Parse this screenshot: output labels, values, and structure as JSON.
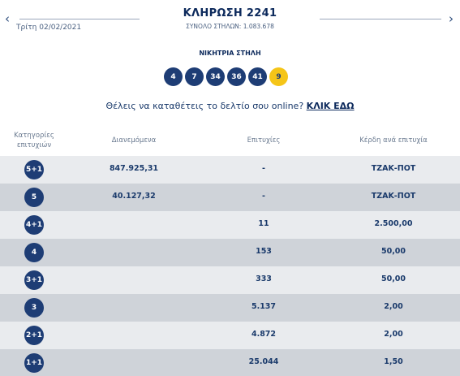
{
  "header": {
    "prev_arrow": "‹",
    "next_arrow": "›",
    "date": "Τρίτη 02/02/2021",
    "draw_title": "ΚΛΗΡΩΣΗ 2241",
    "total_columns": "ΣΥΝΟΛΟ ΣΤΗΛΩΝ: 1.083.678"
  },
  "winning": {
    "title": "ΝΙΚΗΤΡΙΑ ΣΤΗΛΗ",
    "numbers": [
      "4",
      "7",
      "34",
      "36",
      "41"
    ],
    "joker": "9",
    "colors": {
      "ball": "#1e3d75",
      "joker": "#f5c518"
    }
  },
  "online": {
    "text": "Θέλεις να καταθέτεις το δελτίο σου online? ",
    "link": "ΚΛΙΚ ΕΔΩ"
  },
  "table": {
    "headers": [
      "Κατηγορίες επιτυχιών",
      "Διανεμόμενα",
      "Επιτυχίες",
      "Κέρδη ανά επιτυχία"
    ],
    "rows": [
      {
        "category": "5+1",
        "distributed": "847.925,31",
        "winners": "-",
        "prize": "ΤΖΑΚ-ΠΟΤ"
      },
      {
        "category": "5",
        "distributed": "40.127,32",
        "winners": "-",
        "prize": "ΤΖΑΚ-ΠΟΤ"
      },
      {
        "category": "4+1",
        "distributed": "",
        "winners": "11",
        "prize": "2.500,00"
      },
      {
        "category": "4",
        "distributed": "",
        "winners": "153",
        "prize": "50,00"
      },
      {
        "category": "3+1",
        "distributed": "",
        "winners": "333",
        "prize": "50,00"
      },
      {
        "category": "3",
        "distributed": "",
        "winners": "5.137",
        "prize": "2,00"
      },
      {
        "category": "2+1",
        "distributed": "",
        "winners": "4.872",
        "prize": "2,00"
      },
      {
        "category": "1+1",
        "distributed": "",
        "winners": "25.044",
        "prize": "1,50"
      }
    ]
  }
}
